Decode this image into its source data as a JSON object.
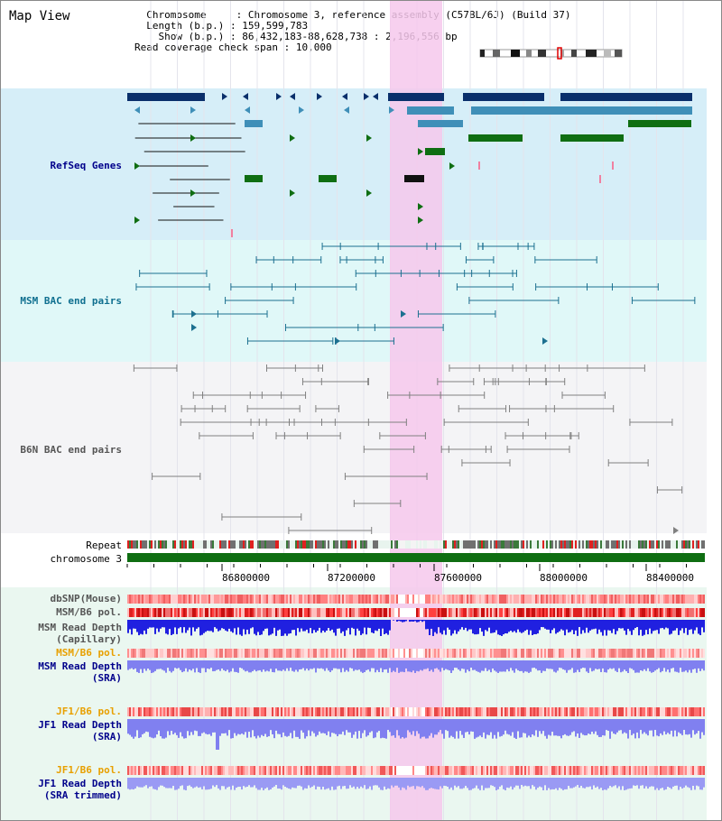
{
  "header": {
    "title": "Map View",
    "chromosome_key": "Chromosome",
    "chromosome_val": "Chromosome 3, reference assembly (C57BL/6J) (Build 37)",
    "length_key": "Length (b.p.)",
    "length_val": "159,599,783",
    "show_key": "Show (b.p.)",
    "show_val": "86,432,183-88,628,738 : 2,196,556 bp",
    "span_key": "Read coverage check span",
    "span_val": "10,000"
  },
  "tracks": {
    "refseq": "RefSeq Genes",
    "msm_bac": "MSM BAC end pairs",
    "b6n_bac": "B6N BAC end pairs",
    "repeat": "Repeat",
    "chromosome": "chromosome 3",
    "dbsnp": "dbSNP(Mouse)",
    "msm_b6_pol_1": "MSM/B6 pol.",
    "msm_read_depth_cap_1": "MSM Read Depth",
    "msm_read_depth_cap_2": "(Capillary)",
    "msm_b6_pol_2": "MSM/B6 pol.",
    "msm_read_depth_sra_1": "MSM Read Depth",
    "msm_read_depth_sra_2": "(SRA)",
    "jf1_b6_pol_1": "JF1/B6 pol.",
    "jf1_read_depth_1": "JF1 Read Depth",
    "jf1_read_depth_2": "(SRA)",
    "jf1_b6_pol_2": "JF1/B6 pol.",
    "jf1_read_depth_trim_1": "JF1 Read Depth",
    "jf1_read_depth_trim_2": "(SRA trimmed)"
  },
  "axis": {
    "ticks": [
      "86800000",
      "87200000",
      "87600000",
      "88000000",
      "88400000"
    ]
  },
  "colors": {
    "refseq_bg": "#d6eef8",
    "msm_bg": "#e0f8f8",
    "b6n_bg": "#f4f4f6",
    "highlight": "#f6c8ec",
    "gene_dark": "#0a2f6b",
    "gene_mid": "#3f8fb8",
    "gene_green": "#0f6e12",
    "msm_line": "#1c7090",
    "b6n_line": "#808080",
    "depth_blue": "#2020e0",
    "depth_light": "#8080f0",
    "label_navy": "#00008b",
    "label_teal": "#107090",
    "label_orange": "#e8a000",
    "label_gray": "#555555"
  }
}
